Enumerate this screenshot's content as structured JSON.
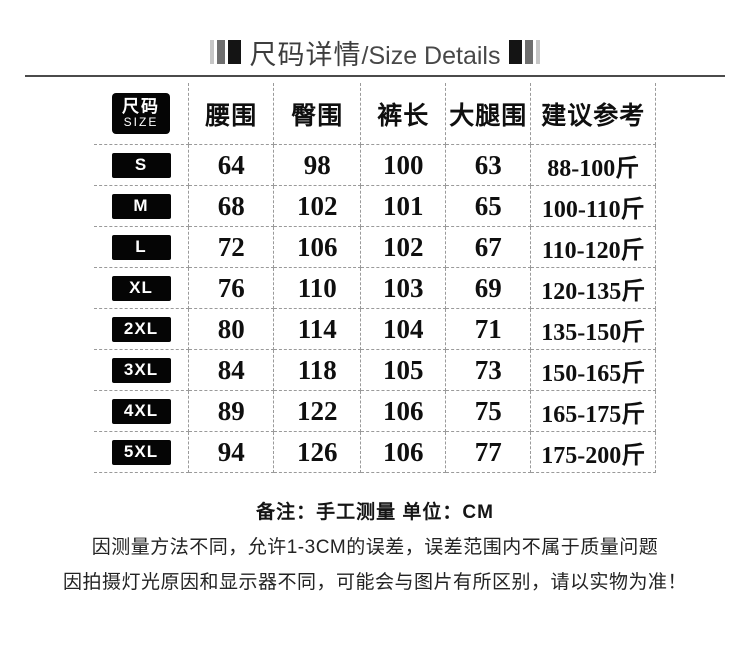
{
  "title": {
    "zh": "尺码详情",
    "en": "/Size Details"
  },
  "table": {
    "size_header_zh": "尺码",
    "size_header_en": "SIZE",
    "columns": [
      "腰围",
      "臀围",
      "裤长",
      "大腿围",
      "建议参考"
    ],
    "unit": "CM",
    "rows": [
      {
        "size": "S",
        "waist": "64",
        "hip": "98",
        "length": "100",
        "thigh": "63",
        "suggest": "88-100斤"
      },
      {
        "size": "M",
        "waist": "68",
        "hip": "102",
        "length": "101",
        "thigh": "65",
        "suggest": "100-110斤"
      },
      {
        "size": "L",
        "waist": "72",
        "hip": "106",
        "length": "102",
        "thigh": "67",
        "suggest": "110-120斤"
      },
      {
        "size": "XL",
        "waist": "76",
        "hip": "110",
        "length": "103",
        "thigh": "69",
        "suggest": "120-135斤"
      },
      {
        "size": "2XL",
        "waist": "80",
        "hip": "114",
        "length": "104",
        "thigh": "71",
        "suggest": "135-150斤"
      },
      {
        "size": "3XL",
        "waist": "84",
        "hip": "118",
        "length": "105",
        "thigh": "73",
        "suggest": "150-165斤"
      },
      {
        "size": "4XL",
        "waist": "89",
        "hip": "122",
        "length": "106",
        "thigh": "75",
        "suggest": "165-175斤"
      },
      {
        "size": "5XL",
        "waist": "94",
        "hip": "126",
        "length": "106",
        "thigh": "77",
        "suggest": "175-200斤"
      }
    ]
  },
  "notes": {
    "line1": "备注：手工测量  单位：CM",
    "line2": "因测量方法不同，允许1-3CM的误差，误差范围内不属于质量问题",
    "line3": "因拍摄灯光原因和显示器不同，可能会与图片有所区别，请以实物为准！"
  },
  "colors": {
    "background": "#ffffff",
    "badge_bg": "#050505",
    "badge_text": "#ffffff",
    "dashed_line": "#9a9a9a",
    "solid_line": "#4b4b4b",
    "text": "#0f0f0f"
  }
}
